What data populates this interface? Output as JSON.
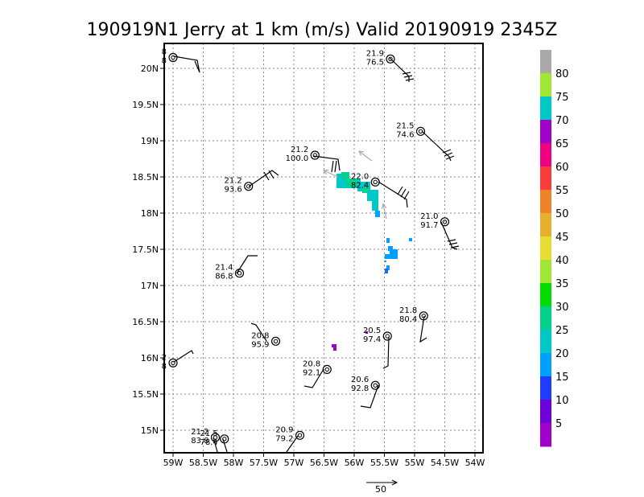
{
  "chart_data": {
    "type": "scatter",
    "title": "190919N1 Jerry at 1 km (m/s) Valid 20190919 2345Z",
    "x_ticks": [
      "59W",
      "58.5W",
      "58W",
      "57.5W",
      "57W",
      "56.5W",
      "56W",
      "55.5W",
      "55W",
      "54.5W",
      "54W"
    ],
    "y_ticks": [
      "20N",
      "19.5N",
      "19N",
      "18.5N",
      "18N",
      "17.5N",
      "17N",
      "16.5N",
      "16N",
      "15.5N",
      "15N"
    ],
    "xlim": [
      -59.1,
      -53.9
    ],
    "ylim": [
      14.7,
      20.6
    ],
    "grid": true,
    "reference_vector_label": "50",
    "colorbar_labels": [
      "5",
      "10",
      "15",
      "20",
      "25",
      "30",
      "35",
      "40",
      "45",
      "50",
      "55",
      "60",
      "65",
      "70",
      "75",
      "80"
    ],
    "colorbar_colors": [
      "#a000c8",
      "#6e00dc",
      "#1e3cff",
      "#00a0ff",
      "#00c8c8",
      "#00d28c",
      "#00dc00",
      "#a0e632",
      "#e6dc32",
      "#e6af2d",
      "#f08228",
      "#fa3c3c",
      "#f00082",
      "#a000c8",
      "#00c8c8",
      "#a0e632",
      "#aaaaaa"
    ],
    "observations": [
      {
        "lon": -59.0,
        "lat": 20.15,
        "top": "8",
        "bottom": "8"
      },
      {
        "lon": -55.4,
        "lat": 20.13,
        "top": "21.9",
        "bottom": "76.5"
      },
      {
        "lon": -54.9,
        "lat": 19.13,
        "top": "21.5",
        "bottom": "74.6"
      },
      {
        "lon": -56.65,
        "lat": 18.8,
        "top": "21.2",
        "bottom": "100.0"
      },
      {
        "lon": -55.65,
        "lat": 18.43,
        "top": "22.0",
        "bottom": "82.4"
      },
      {
        "lon": -57.75,
        "lat": 18.37,
        "top": "21.2",
        "bottom": "93.6"
      },
      {
        "lon": -54.5,
        "lat": 17.88,
        "top": "21.0",
        "bottom": "91.7"
      },
      {
        "lon": -57.9,
        "lat": 17.17,
        "top": "21.4",
        "bottom": "86.8"
      },
      {
        "lon": -54.85,
        "lat": 16.58,
        "top": "21.8",
        "bottom": "80.4"
      },
      {
        "lon": -55.45,
        "lat": 16.3,
        "top": "20.5",
        "bottom": "97.4"
      },
      {
        "lon": -57.3,
        "lat": 16.23,
        "top": "20.8",
        "bottom": "95.9"
      },
      {
        "lon": -59.0,
        "lat": 15.93,
        "top": "2",
        "bottom": "8"
      },
      {
        "lon": -56.45,
        "lat": 15.84,
        "top": "20.8",
        "bottom": "92.1"
      },
      {
        "lon": -55.65,
        "lat": 15.62,
        "top": "20.6",
        "bottom": "92.8"
      },
      {
        "lon": -56.9,
        "lat": 14.93,
        "top": "20.9",
        "bottom": "79.2"
      },
      {
        "lon": -58.3,
        "lat": 14.9,
        "top": "21.2",
        "bottom": "83.8"
      },
      {
        "lon": -58.15,
        "lat": 14.88,
        "top": "21.5",
        "bottom": "78.4"
      }
    ]
  }
}
